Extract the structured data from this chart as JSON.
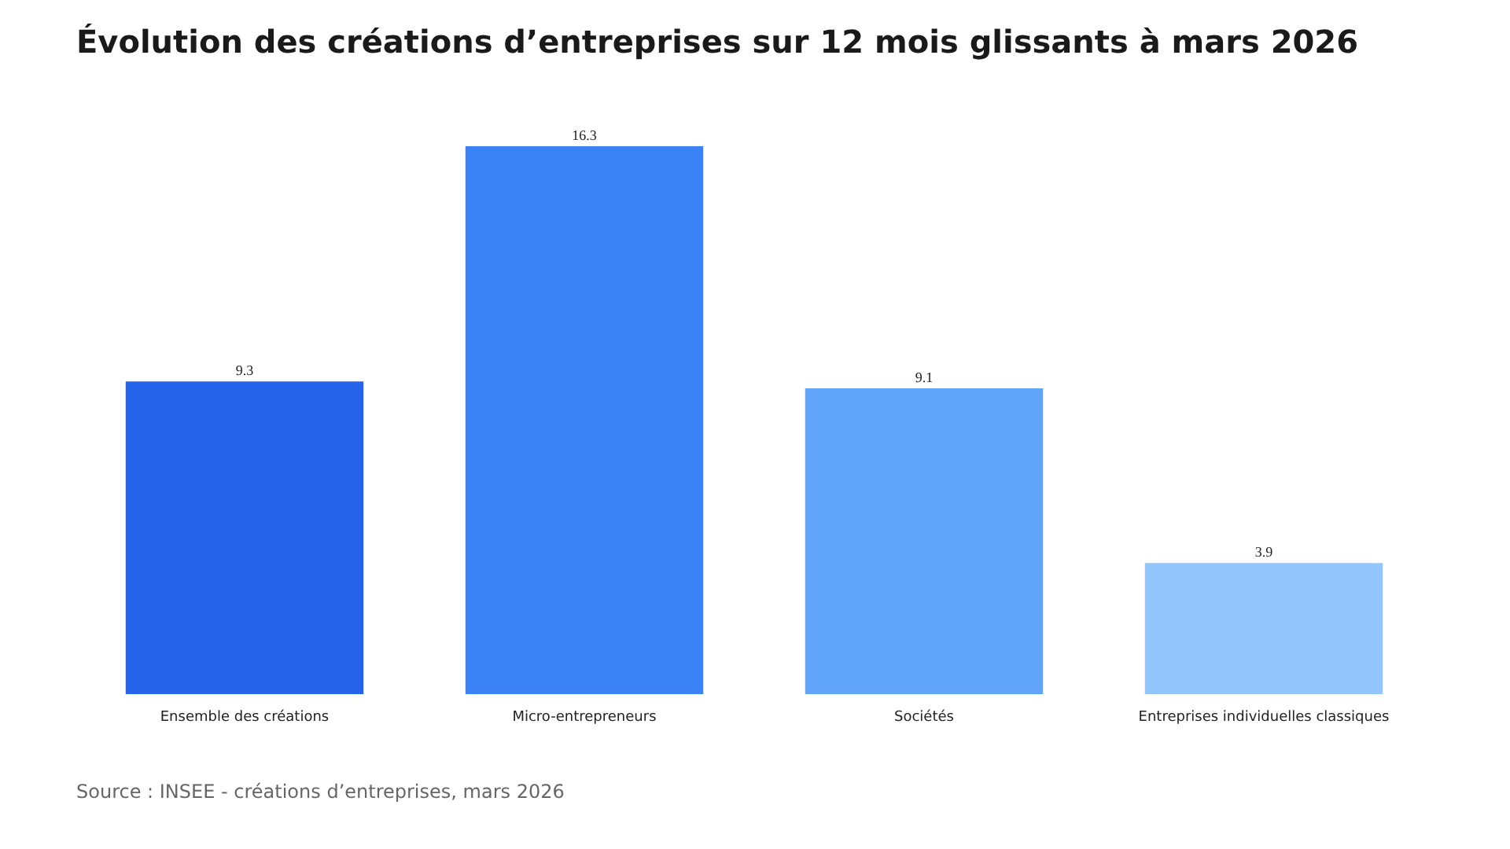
{
  "chart_data": {
    "type": "bar",
    "title": "Évolution des créations d’entreprises sur 12 mois glissants à mars 2026",
    "categories": [
      "Ensemble des créations",
      "Micro-entrepreneurs",
      "Sociétés",
      "Entreprises individuelles classiques"
    ],
    "values": [
      9.3,
      16.3,
      9.1,
      3.9
    ],
    "colors": [
      "#2563eb",
      "#3b82f6",
      "#60a5fa",
      "#93c5fd"
    ],
    "data_labels": true,
    "annotations": [
      "Source : INSEE - créations d’entreprises, mars 2026"
    ]
  }
}
